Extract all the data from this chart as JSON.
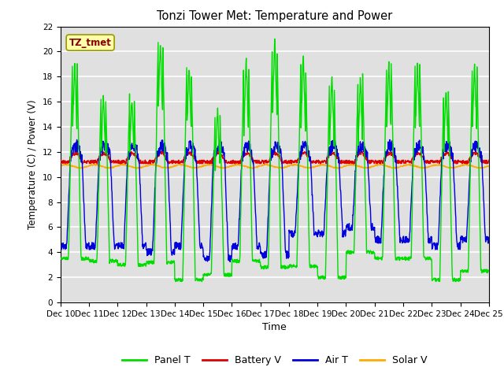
{
  "title": "Tonzi Tower Met: Temperature and Power",
  "xlabel": "Time",
  "ylabel": "Temperature (C) / Power (V)",
  "annotation": "TZ_tmet",
  "ylim": [
    0,
    22
  ],
  "yticks": [
    0,
    2,
    4,
    6,
    8,
    10,
    12,
    14,
    16,
    18,
    20,
    22
  ],
  "xtick_labels": [
    "Dec 10",
    "Dec 11",
    "Dec 12",
    "Dec 13",
    "Dec 14",
    "Dec 15",
    "Dec 16",
    "Dec 17",
    "Dec 18",
    "Dec 19",
    "Dec 20",
    "Dec 21",
    "Dec 22",
    "Dec 23",
    "Dec 24",
    "Dec 25"
  ],
  "panel_t_color": "#00dd00",
  "battery_v_color": "#dd0000",
  "air_t_color": "#0000dd",
  "solar_v_color": "#ffaa00",
  "bg_color": "#e0e0e0",
  "grid_color": "#ffffff",
  "annotation_bg": "#ffffaa",
  "annotation_fg": "#880000"
}
